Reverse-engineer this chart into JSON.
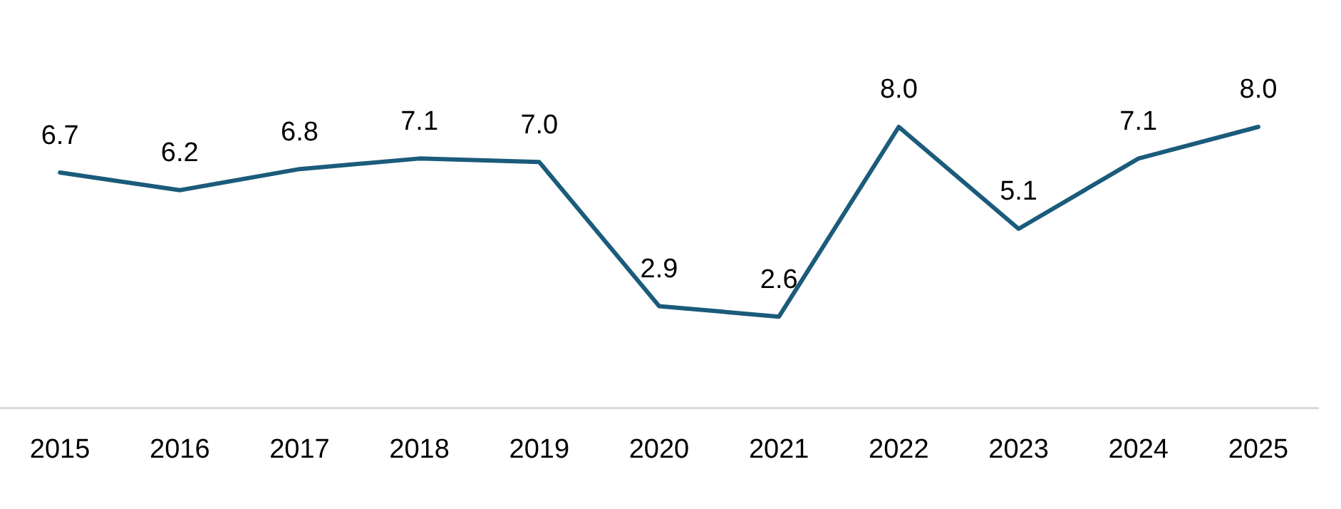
{
  "chart_data": {
    "type": "line",
    "categories": [
      "2015",
      "2016",
      "2017",
      "2018",
      "2019",
      "2020",
      "2021",
      "2022",
      "2023",
      "2024",
      "2025"
    ],
    "series": [
      {
        "color": "#1b5b7b",
        "values": [
          6.7,
          6.2,
          6.8,
          7.1,
          7.0,
          2.9,
          2.6,
          8.0,
          5.1,
          7.1,
          8.0
        ],
        "value_labels": [
          "6.7",
          "6.2",
          "6.8",
          "7.1",
          "7.0",
          "2.9",
          "2.6",
          "8.0",
          "5.1",
          "7.1",
          "8.0"
        ]
      }
    ],
    "grid": false,
    "legend": false,
    "marker": "none",
    "line_style": "solid",
    "tick_labels": "x"
  }
}
